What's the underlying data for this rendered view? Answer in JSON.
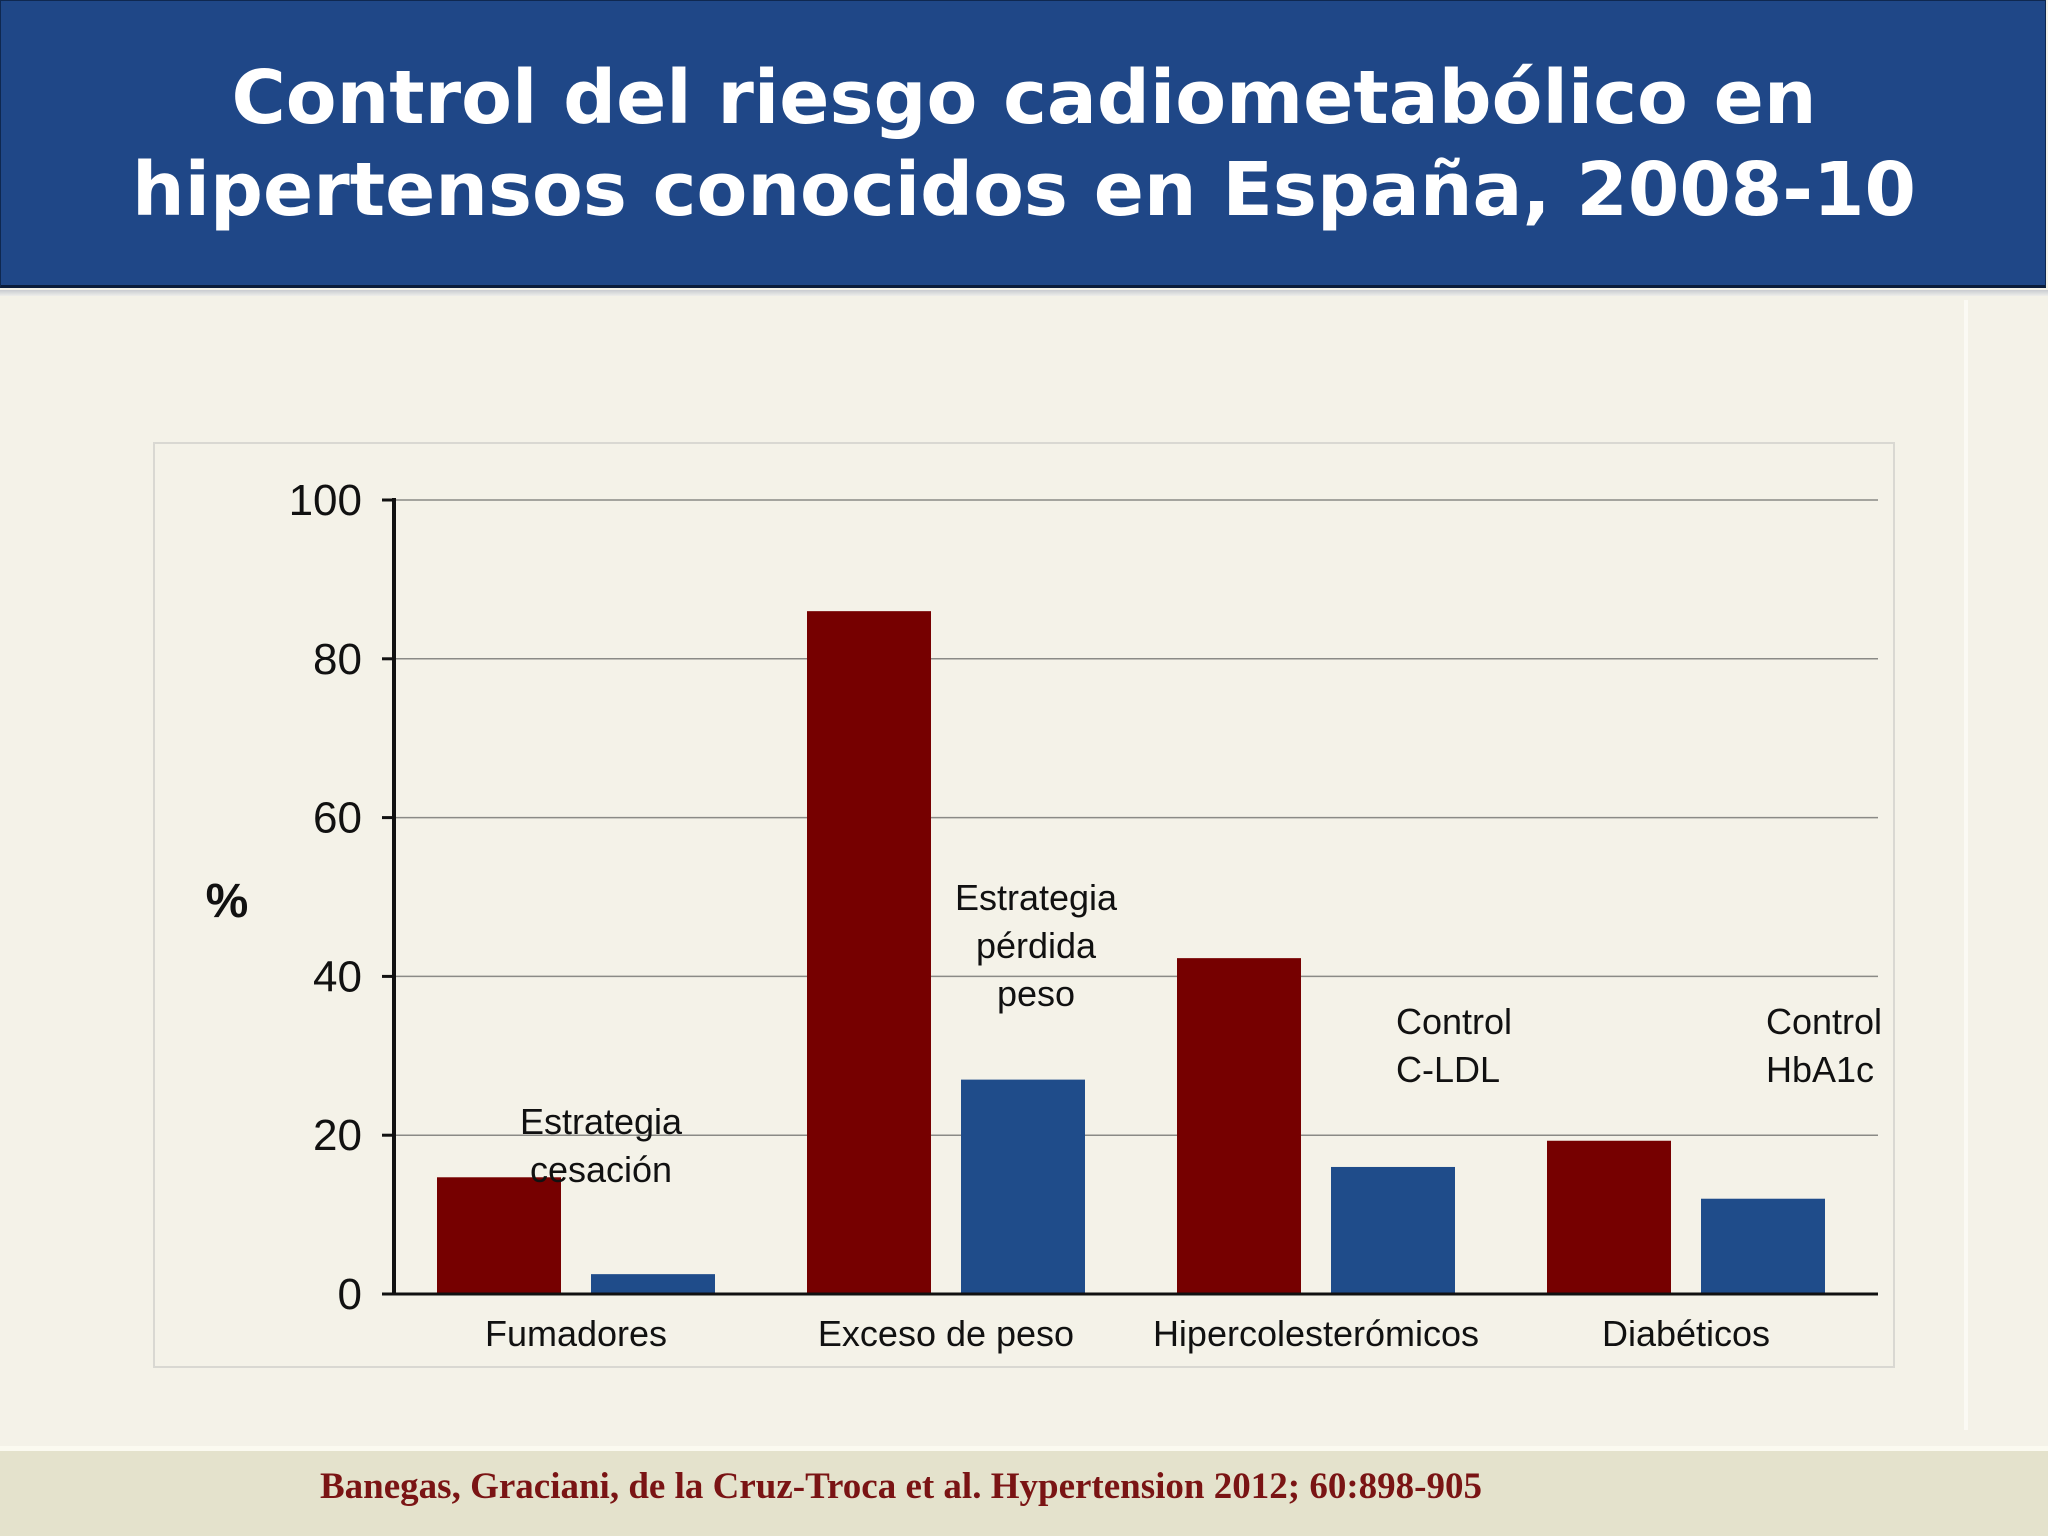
{
  "slide": {
    "title_lines": [
      "Control del riesgo cadiometabólico en",
      "hipertensos conocidos en España, 2008-10"
    ],
    "citation": "Banegas, Graciani, de la Cruz-Troca et al. Hypertension 2012; 60:898-905"
  },
  "colors": {
    "header": "#1f4787",
    "series_prevalence": "#760000",
    "series_strategy": "#1f4c8a",
    "citation": "#7a1414"
  },
  "chart_data": {
    "type": "bar",
    "title": "",
    "xlabel": "",
    "ylabel": "%",
    "ylim": [
      0,
      100
    ],
    "yticks": [
      0,
      20,
      40,
      60,
      80,
      100
    ],
    "grid": true,
    "categories": [
      "Fumadores",
      "Exceso de peso",
      "Hipercolesterómicos",
      "Diabéticos"
    ],
    "series": [
      {
        "color": "#760000",
        "values": [
          14.7,
          86,
          42.3,
          19.3
        ]
      },
      {
        "color": "#1f4c8a",
        "values": [
          2.5,
          27,
          16,
          12
        ]
      }
    ],
    "annotations": [
      {
        "lines": [
          "Estrategia",
          "cesación"
        ],
        "category": 0
      },
      {
        "lines": [
          "Estrategia",
          "pérdida",
          "peso"
        ],
        "category": 1
      },
      {
        "lines": [
          "Control",
          "C-LDL"
        ],
        "category": 2
      },
      {
        "lines": [
          "Control",
          "HbA1c"
        ],
        "category": 3
      }
    ]
  }
}
